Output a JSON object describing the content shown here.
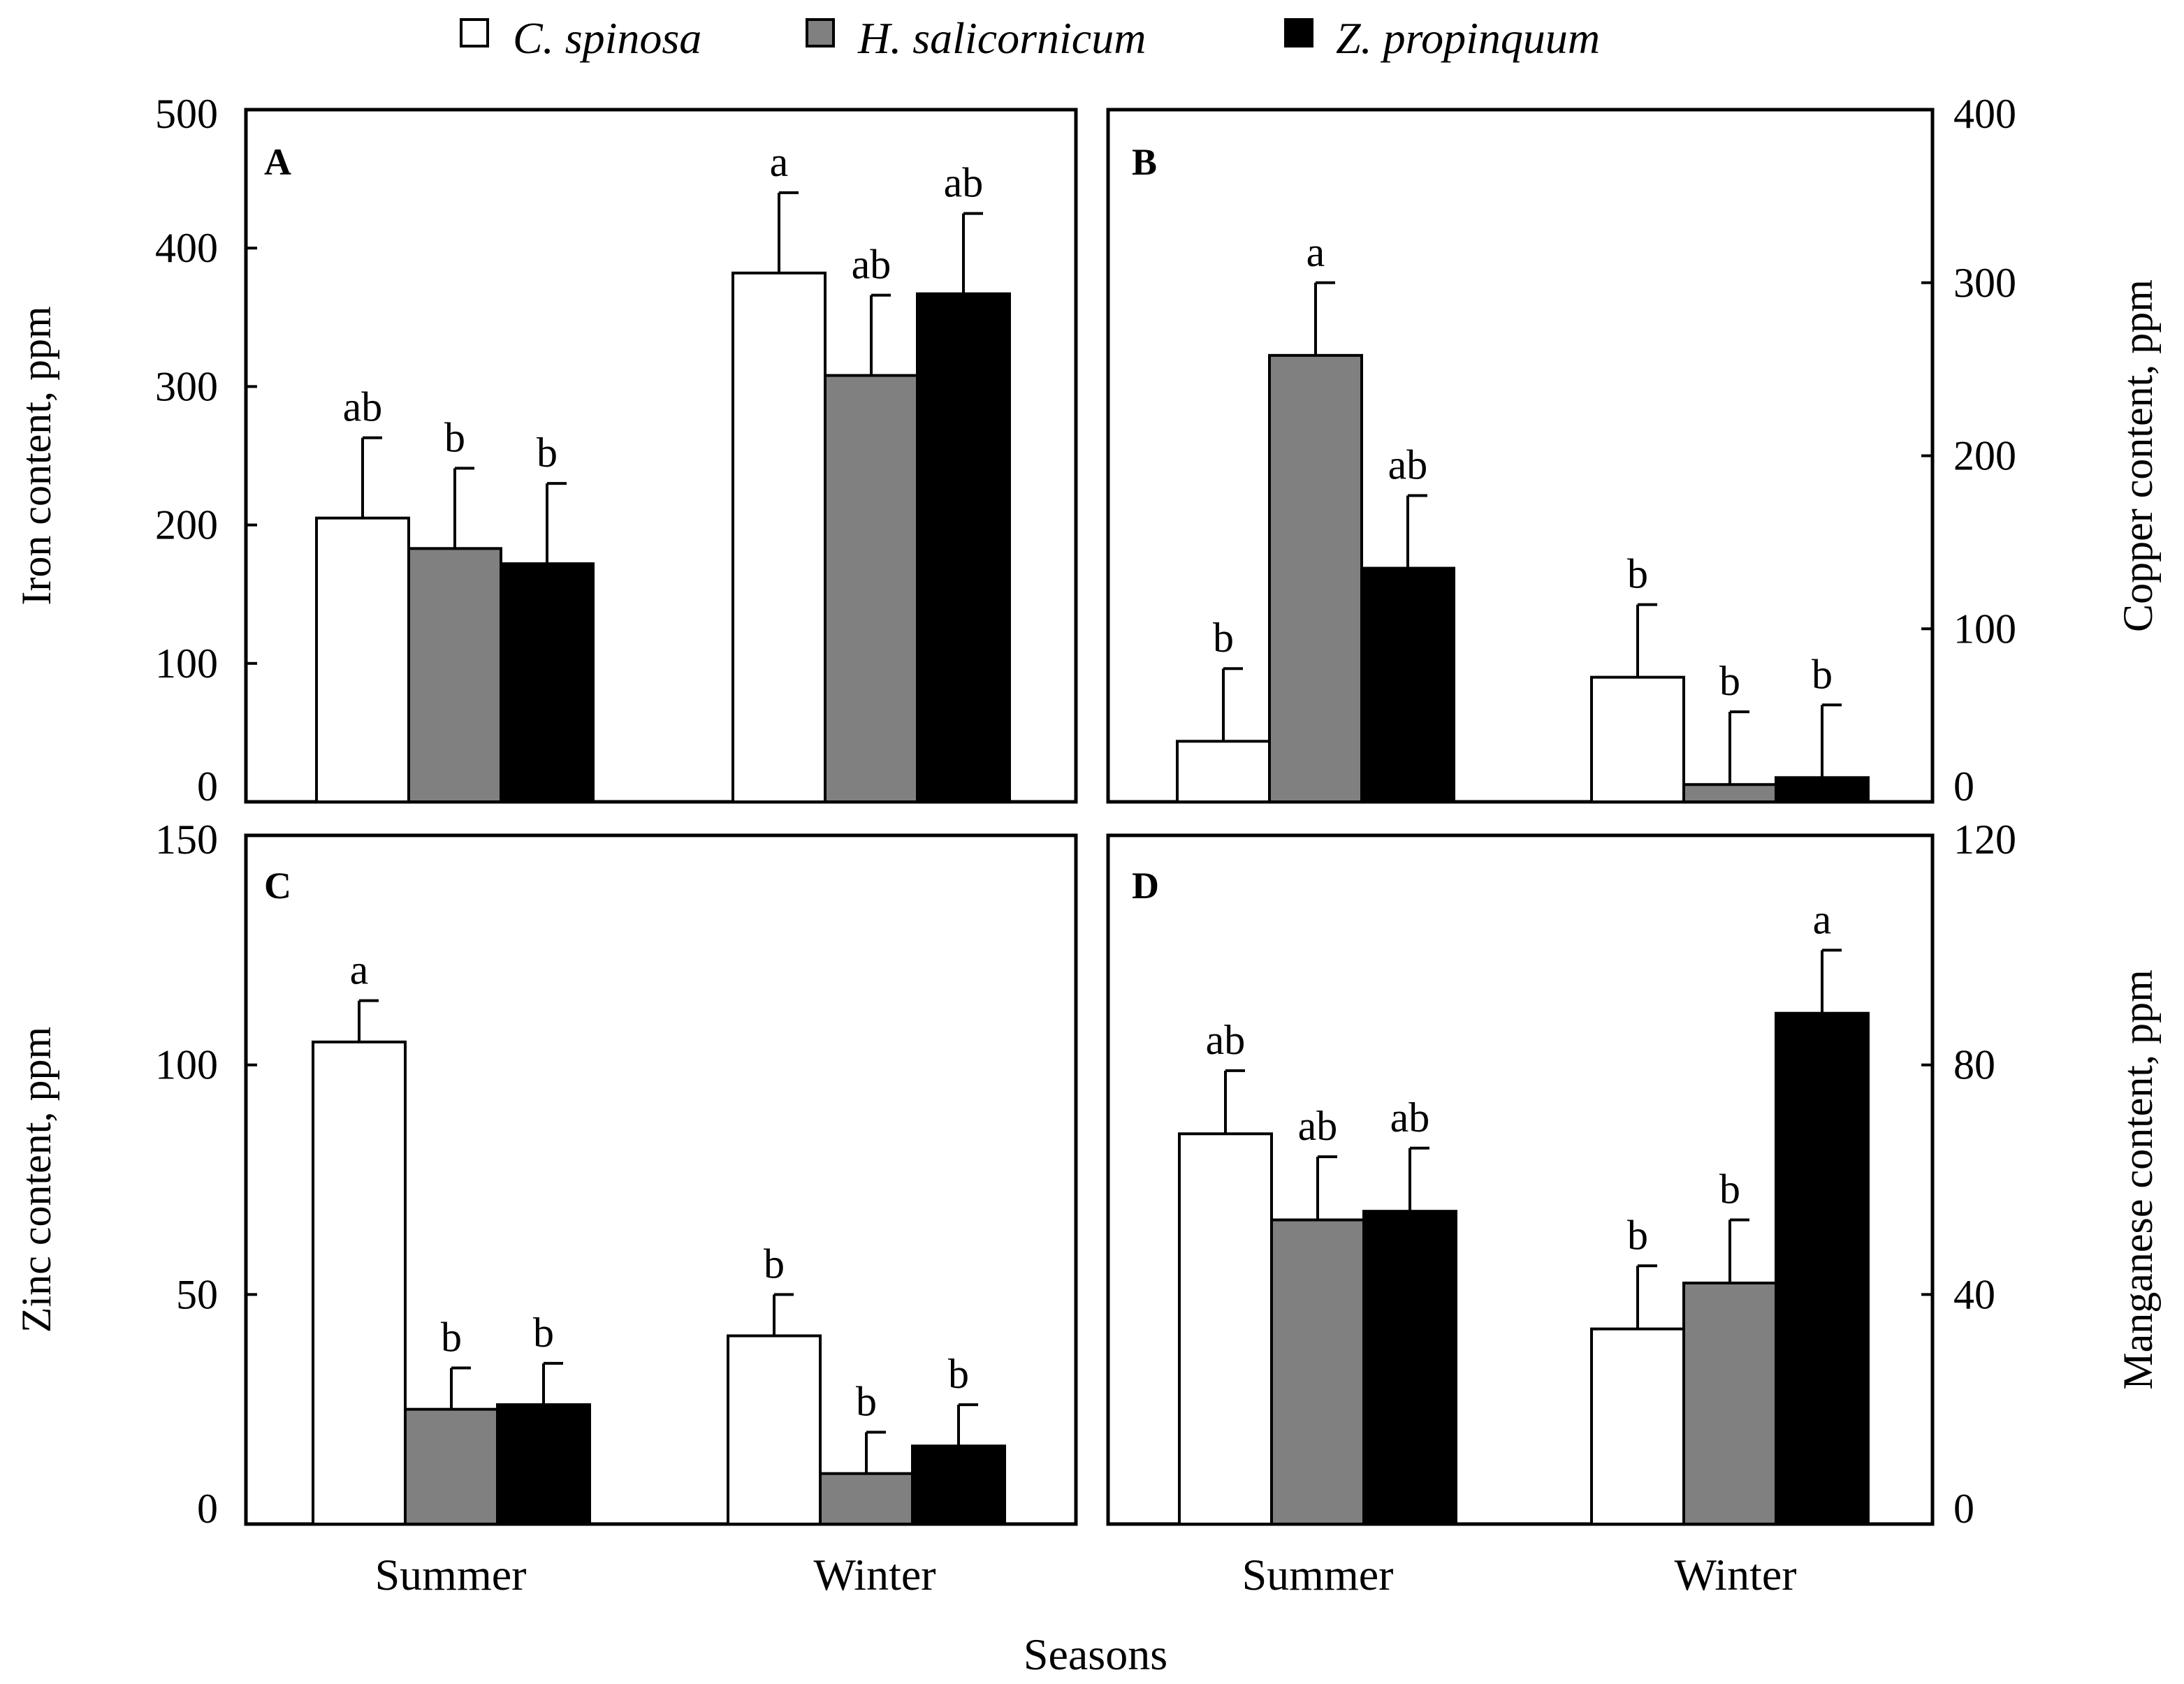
{
  "legend": {
    "series_names": [
      "C. spinosa",
      "H. salicornicum",
      "Z. propinquum"
    ],
    "series_colors": [
      "#ffffff",
      "#808080",
      "#000000"
    ]
  },
  "xaxis_title": "Seasons",
  "chart_data": [
    {
      "type": "bar",
      "panel": "A",
      "ylabel": "Iron content, ppm",
      "yaxis_side": "left",
      "ylim": [
        0,
        500
      ],
      "yticks": [
        0,
        100,
        200,
        300,
        400,
        500
      ],
      "categories": [
        "Summer",
        "Winter"
      ],
      "series": [
        {
          "name": "C. spinosa",
          "values": [
            205,
            382
          ],
          "errors": [
            58,
            58
          ],
          "letters": [
            "ab",
            "a"
          ]
        },
        {
          "name": "H. salicornicum",
          "values": [
            183,
            308
          ],
          "errors": [
            58,
            58
          ],
          "letters": [
            "b",
            "ab"
          ]
        },
        {
          "name": "Z. propinquum",
          "values": [
            172,
            367
          ],
          "errors": [
            58,
            58
          ],
          "letters": [
            "b",
            "ab"
          ]
        }
      ]
    },
    {
      "type": "bar",
      "panel": "B",
      "ylabel": "Copper content, ppm",
      "yaxis_side": "right",
      "ylim": [
        0,
        400
      ],
      "yticks": [
        0,
        100,
        200,
        300,
        400
      ],
      "categories": [
        "Summer",
        "Winter"
      ],
      "series": [
        {
          "name": "C. spinosa",
          "values": [
            35,
            72
          ],
          "errors": [
            42,
            42
          ],
          "letters": [
            "b",
            "b"
          ]
        },
        {
          "name": "H. salicornicum",
          "values": [
            258,
            10
          ],
          "errors": [
            42,
            42
          ],
          "letters": [
            "a",
            "b"
          ]
        },
        {
          "name": "Z. propinquum",
          "values": [
            135,
            14
          ],
          "errors": [
            42,
            42
          ],
          "letters": [
            "ab",
            "b"
          ]
        }
      ]
    },
    {
      "type": "bar",
      "panel": "C",
      "ylabel": "Zinc content, ppm",
      "yaxis_side": "left",
      "ylim": [
        0,
        150
      ],
      "yticks": [
        0,
        50,
        100,
        150
      ],
      "categories": [
        "Summer",
        "Winter"
      ],
      "series": [
        {
          "name": "C. spinosa",
          "values": [
            105,
            41
          ],
          "errors": [
            9,
            9
          ],
          "letters": [
            "a",
            "b"
          ]
        },
        {
          "name": "H. salicornicum",
          "values": [
            25,
            11
          ],
          "errors": [
            9,
            9
          ],
          "letters": [
            "b",
            "b"
          ]
        },
        {
          "name": "Z. propinquum",
          "values": [
            26,
            17
          ],
          "errors": [
            9,
            9
          ],
          "letters": [
            "b",
            "b"
          ]
        }
      ]
    },
    {
      "type": "bar",
      "panel": "D",
      "ylabel": "Manganese content, ppm",
      "yaxis_side": "right",
      "ylim": [
        0,
        120
      ],
      "yticks": [
        0,
        40,
        80,
        120
      ],
      "categories": [
        "Summer",
        "Winter"
      ],
      "series": [
        {
          "name": "C. spinosa",
          "values": [
            68,
            34
          ],
          "errors": [
            11,
            11
          ],
          "letters": [
            "ab",
            "b"
          ]
        },
        {
          "name": "H. salicornicum",
          "values": [
            53,
            42
          ],
          "errors": [
            11,
            11
          ],
          "letters": [
            "ab",
            "b"
          ]
        },
        {
          "name": "Z. propinquum",
          "values": [
            54.5,
            89
          ],
          "errors": [
            11,
            11
          ],
          "letters": [
            "ab",
            "a"
          ]
        }
      ]
    }
  ]
}
